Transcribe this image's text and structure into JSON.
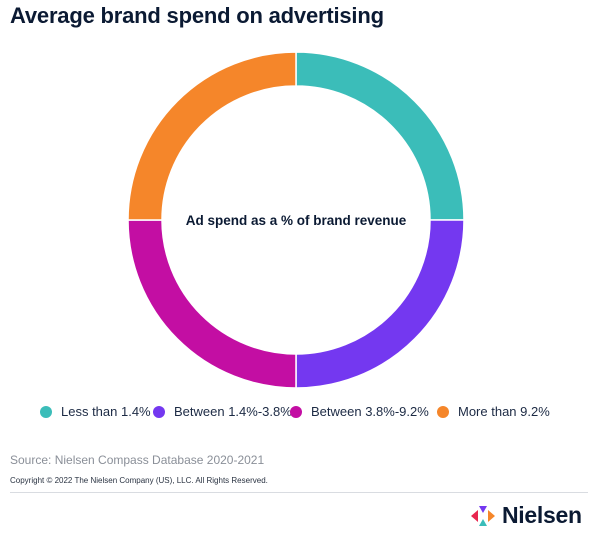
{
  "title": "Average brand spend on advertising",
  "chart_data": {
    "type": "pie",
    "variant": "donut",
    "center_label": "Ad spend as a % of brand revenue",
    "categories": [
      "Less than 1.4%",
      "Between 1.4%-3.8%",
      "Between 3.8%-9.2%",
      "More than 9.2%"
    ],
    "values": [
      25,
      25,
      25,
      25
    ],
    "colors": [
      "#3bbdb9",
      "#7438f0",
      "#c30ea3",
      "#f5862a"
    ],
    "legend_position": "bottom"
  },
  "source": "Source: Nielsen Compass Database 2020-2021",
  "copyright": "Copyright © 2022 The Nielsen Company (US), LLC. All Rights Reserved.",
  "brand": {
    "name": "Nielsen",
    "icon": "nielsen-logo-icon",
    "logo_colors": [
      "#e8264f",
      "#7438f0",
      "#3bbdb9",
      "#f5862a"
    ]
  }
}
